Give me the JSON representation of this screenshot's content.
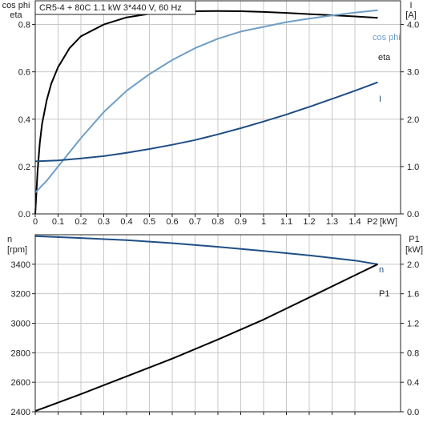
{
  "chart_data": [
    {
      "type": "line",
      "title": "CR5-4 + 80C   1.1 kW   3*440 V, 60 Hz",
      "xlabel": "P2 [kW]",
      "xlabel_name": "P2",
      "xlabel_unit": "[kW]",
      "ylabel_left": [
        "cos phi",
        "eta"
      ],
      "ylabel_right": [
        "I",
        "[A]"
      ],
      "xlim": [
        0,
        1.6
      ],
      "ylim_left": [
        0,
        0.9
      ],
      "ylim_right": [
        0,
        4.5
      ],
      "grid": true,
      "x_ticks": [
        "0",
        "0.1",
        "0.2",
        "0.3",
        "0.4",
        "0.5",
        "0.6",
        "0.7",
        "0.8",
        "0.9",
        "1",
        "1.1",
        "1.2",
        "1.3",
        "1.4"
      ],
      "y_ticks_left": [
        "0.0",
        "0.2",
        "0.4",
        "0.6",
        "0.8"
      ],
      "y_ticks_right": [
        "0.0",
        "1.0",
        "2.0",
        "3.0",
        "4.0"
      ],
      "series": [
        {
          "name": "eta",
          "axis": "left",
          "color": "#000000",
          "x": [
            0,
            0.01,
            0.02,
            0.03,
            0.05,
            0.07,
            0.1,
            0.15,
            0.2,
            0.3,
            0.4,
            0.5,
            0.6,
            0.7,
            0.8,
            0.9,
            1.0,
            1.1,
            1.2,
            1.3,
            1.4,
            1.5
          ],
          "values": [
            0,
            0.18,
            0.3,
            0.38,
            0.48,
            0.55,
            0.62,
            0.7,
            0.75,
            0.8,
            0.83,
            0.845,
            0.852,
            0.856,
            0.857,
            0.856,
            0.853,
            0.849,
            0.844,
            0.839,
            0.834,
            0.828
          ]
        },
        {
          "name": "cos phi",
          "axis": "left",
          "color": "#6f9ec6",
          "x": [
            0,
            0.05,
            0.1,
            0.2,
            0.3,
            0.4,
            0.5,
            0.6,
            0.7,
            0.8,
            0.9,
            1.0,
            1.1,
            1.2,
            1.3,
            1.4,
            1.5
          ],
          "values": [
            0.09,
            0.14,
            0.2,
            0.32,
            0.43,
            0.52,
            0.59,
            0.65,
            0.7,
            0.74,
            0.77,
            0.79,
            0.81,
            0.825,
            0.838,
            0.85,
            0.86
          ]
        },
        {
          "name": "I",
          "axis": "right",
          "color": "#1f4e85",
          "x": [
            0,
            0.1,
            0.2,
            0.3,
            0.4,
            0.5,
            0.6,
            0.7,
            0.8,
            0.9,
            1.0,
            1.1,
            1.2,
            1.3,
            1.4,
            1.5
          ],
          "values": [
            1.11,
            1.13,
            1.17,
            1.22,
            1.29,
            1.37,
            1.46,
            1.56,
            1.68,
            1.81,
            1.95,
            2.1,
            2.26,
            2.43,
            2.6,
            2.78
          ]
        }
      ]
    },
    {
      "type": "line",
      "xlim": [
        0,
        1.6
      ],
      "ylabel_left": [
        "n",
        "[rpm]"
      ],
      "ylabel_right": [
        "P1",
        "[kW]"
      ],
      "ylim_left": [
        2400,
        3600
      ],
      "ylim_right": [
        0,
        2.4
      ],
      "grid": true,
      "y_ticks_left": [
        "2400",
        "2600",
        "2800",
        "3000",
        "3200",
        "3400"
      ],
      "y_ticks_right": [
        "0.0",
        "0.4",
        "0.8",
        "1.2",
        "1.6",
        "2.0"
      ],
      "series": [
        {
          "name": "n",
          "axis": "left",
          "color": "#1f4e85",
          "x": [
            0,
            0.2,
            0.4,
            0.6,
            0.8,
            1.0,
            1.2,
            1.4,
            1.5
          ],
          "values": [
            3590,
            3578,
            3563,
            3543,
            3518,
            3490,
            3460,
            3425,
            3400
          ]
        },
        {
          "name": "P1",
          "axis": "right",
          "color": "#000000",
          "x": [
            0,
            0.2,
            0.4,
            0.6,
            0.8,
            1.0,
            1.2,
            1.4,
            1.5
          ],
          "values": [
            0.01,
            0.24,
            0.48,
            0.72,
            0.98,
            1.25,
            1.55,
            1.85,
            2.0
          ]
        }
      ]
    }
  ]
}
